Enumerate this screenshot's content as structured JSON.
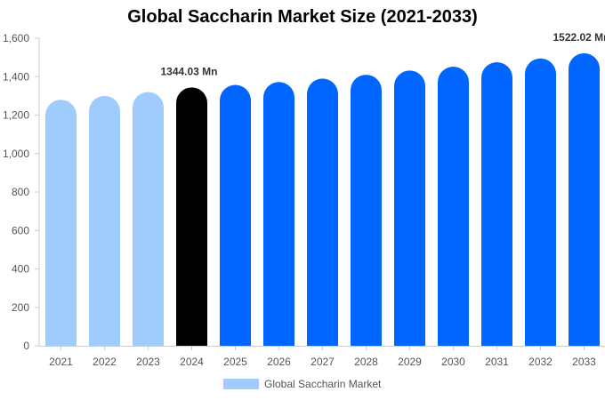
{
  "chart_data": {
    "type": "bar",
    "title": "Global Saccharin Market Size (2021-2033)",
    "categories": [
      "2021",
      "2022",
      "2023",
      "2024",
      "2025",
      "2026",
      "2027",
      "2028",
      "2029",
      "2030",
      "2031",
      "2032",
      "2033"
    ],
    "series": [
      {
        "name": "Global Saccharin Market",
        "values": [
          1280,
          1300,
          1320,
          1344.03,
          1357,
          1372,
          1390,
          1410,
          1432,
          1452,
          1475,
          1495,
          1522.02
        ]
      }
    ],
    "bar_colors": [
      "#a0cbfd",
      "#a0cbfd",
      "#a0cbfd",
      "#000000",
      "#0066ff",
      "#0066ff",
      "#0066ff",
      "#0066ff",
      "#0066ff",
      "#0066ff",
      "#0066ff",
      "#0066ff",
      "#0066ff"
    ],
    "ylim": [
      0,
      1600
    ],
    "yticks": [
      "0",
      "200",
      "400",
      "600",
      "800",
      "1,000",
      "1,200",
      "1,400",
      "1,600"
    ],
    "annotations": [
      {
        "index": 3,
        "text": "1344.03 Mn"
      },
      {
        "index": 12,
        "text": "1522.02 Mn"
      }
    ],
    "grid": false,
    "legend": {
      "position": "bottom",
      "color": "#a0cbfd"
    },
    "xlabel": "",
    "ylabel": ""
  }
}
